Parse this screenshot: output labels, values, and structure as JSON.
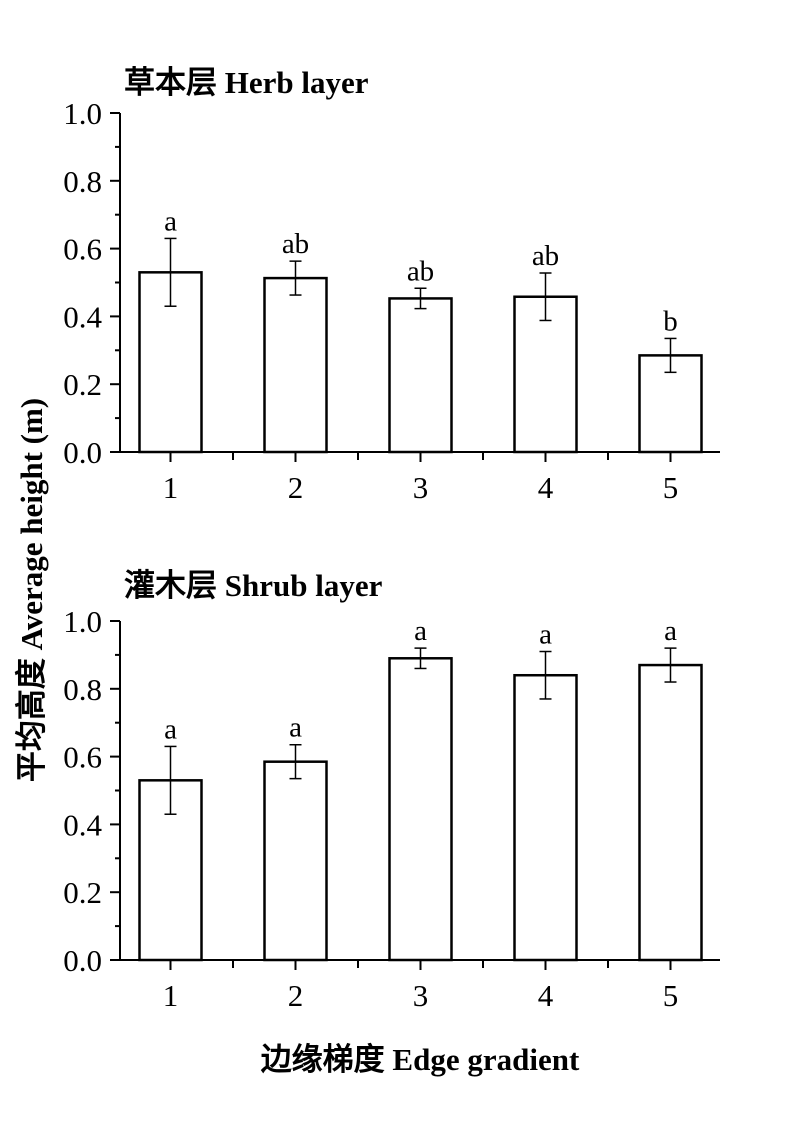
{
  "figure": {
    "ylabel": "平均高度  Average height (m)",
    "xlabel": "边缘梯度  Edge gradient"
  },
  "chart_data": [
    {
      "type": "bar",
      "title": "草本层 Herb layer",
      "categories": [
        "1",
        "2",
        "3",
        "4",
        "5"
      ],
      "values": [
        0.53,
        0.513,
        0.453,
        0.458,
        0.285
      ],
      "errors": [
        0.1,
        0.05,
        0.03,
        0.07,
        0.05
      ],
      "significance": [
        "a",
        "ab",
        "ab",
        "ab",
        "b"
      ],
      "ylim": [
        0,
        1.0
      ],
      "yticks": [
        "0.0",
        "0.2",
        "0.4",
        "0.6",
        "0.8",
        "1.0"
      ],
      "grid": false
    },
    {
      "type": "bar",
      "title": "灌木层 Shrub layer",
      "categories": [
        "1",
        "2",
        "3",
        "4",
        "5"
      ],
      "values": [
        0.53,
        0.585,
        0.89,
        0.84,
        0.87
      ],
      "errors": [
        0.1,
        0.05,
        0.03,
        0.07,
        0.05
      ],
      "significance": [
        "a",
        "a",
        "a",
        "a",
        "a"
      ],
      "ylim": [
        0,
        1.0
      ],
      "yticks": [
        "0.0",
        "0.2",
        "0.4",
        "0.6",
        "0.8",
        "1.0"
      ],
      "grid": false
    }
  ]
}
